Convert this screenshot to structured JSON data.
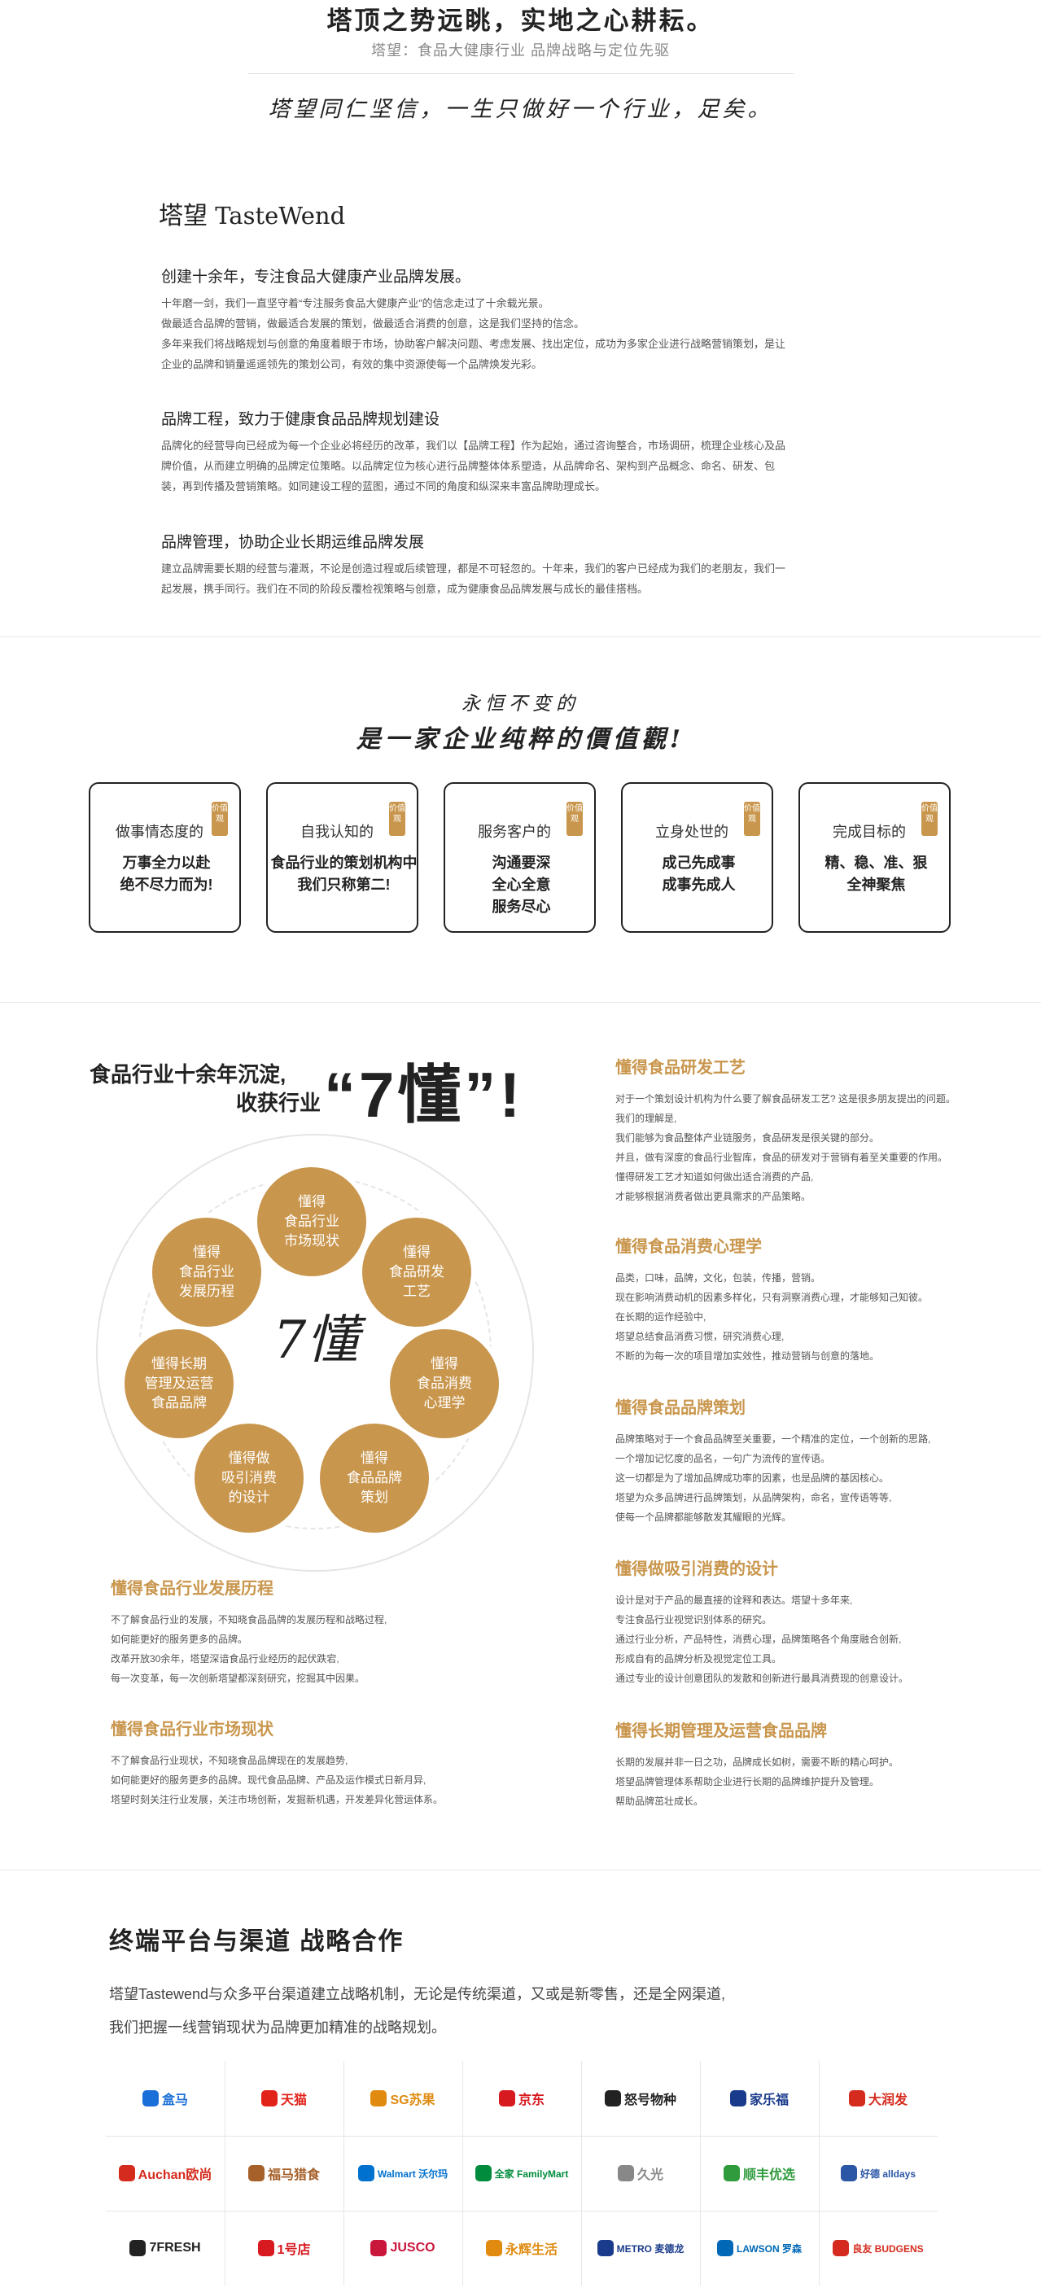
{
  "hero": {
    "title": "塔顶之势远眺，实地之心耕耘。",
    "subtitle": "塔望：食品大健康行业 品牌战略与定位先驱",
    "motto": "塔望同仁坚信，一生只做好一个行业，足矣。"
  },
  "brand": {
    "logo_cn": "塔望",
    "logo_en": "TasteWend"
  },
  "intro": [
    {
      "title": "创建十余年，专注食品大健康产业品牌发展。",
      "lines": [
        "十年磨一剑，我们一直坚守着“专注服务食品大健康产业”的信念走过了十余载光景。",
        "做最适合品牌的营销，做最适合发展的策划，做最适合消费的创意，这是我们坚持的信念。",
        "多年来我们将战略规划与创意的角度着眼于市场，协助客户解决问题、考虑发展、找出定位，成功为多家企业进行战略营销策划，是让",
        "企业的品牌和销量遥遥领先的策划公司，有效的集中资源使每一个品牌焕发光彩。"
      ]
    },
    {
      "title": "品牌工程，致力于健康食品品牌规划建设",
      "lines": [
        "品牌化的经营导向已经成为每一个企业必将经历的改革，我们以【品牌工程】作为起始，通过咨询整合，市场调研，梳理企业核心及品",
        "牌价值，从而建立明确的品牌定位策略。以品牌定位为核心进行品牌整体体系塑造，从品牌命名、架构到产品概念、命名、研发、包",
        "装，再到传播及营销策略。如同建设工程的蓝图，通过不同的角度和纵深来丰富品牌助理成长。"
      ]
    },
    {
      "title": "品牌管理，协助企业长期运维品牌发展",
      "lines": [
        "建立品牌需要长期的经营与灌溉，不论是创造过程或后续管理，都是不可轻忽的。十年来，我们的客户已经成为我们的老朋友，我们一",
        "起发展，携手同行。我们在不同的阶段反覆检视策略与创意，成为健康食品品牌发展与成长的最佳搭档。"
      ]
    }
  ],
  "values": {
    "hand1": "永恒不变的",
    "hand2": "是一家企业纯粹的價值觀!",
    "tag": "价值观",
    "cards": [
      {
        "top": "做事情态度的",
        "bottom": "万事全力以赴\n绝不尽力而为!"
      },
      {
        "top": "自我认知的",
        "bottom": "食品行业的策划机构中\n我们只称第二!"
      },
      {
        "top": "服务客户的",
        "bottom": "沟通要深\n全心全意\n服务尽心"
      },
      {
        "top": "立身处世的",
        "bottom": "成己先成事\n成事先成人"
      },
      {
        "top": "完成目标的",
        "bottom": "精、稳、准、狠\n全神聚焦"
      }
    ]
  },
  "seven": {
    "line1": "食品行业十余年沉淀,",
    "line2": "收获行业",
    "big": "“7懂”!",
    "center": "7懂",
    "accent": "#c9964d",
    "nodes": [
      "懂得\n食品行业\n市场现状",
      "懂得\n食品研发\n工艺",
      "懂得\n食品消费\n心理学",
      "懂得\n食品品牌\n策划",
      "懂得做\n吸引消费\n的设计",
      "懂得长期\n管理及运营\n食品品牌",
      "懂得\n食品行业\n发展历程"
    ],
    "sections": [
      {
        "title": "懂得食品研发工艺",
        "lines": [
          "对于一个策划设计机构为什么要了解食品研发工艺? 这是很多朋友提出的问题。",
          "我们的理解是,",
          "我们能够为食品整体产业链服务，食品研发是很关键的部分。",
          "并且，做有深度的食品行业智库，食品的研发对于营销有着至关重要的作用。",
          "懂得研发工艺才知道如何做出适合消费的产品,",
          "才能够根据消费者做出更具需求的产品策略。"
        ]
      },
      {
        "title": "懂得食品消费心理学",
        "lines": [
          "品类，口味，品牌，文化，包装，传播，营销。",
          "现在影响消费动机的因素多样化，只有洞察消费心理，才能够知己知彼。",
          "在长期的运作经验中,",
          "塔望总结食品消费习惯，研究消费心理,",
          "不断的为每一次的项目增加实效性，推动营销与创意的落地。"
        ]
      },
      {
        "title": "懂得食品品牌策划",
        "lines": [
          "品牌策略对于一个食品品牌至关重要，一个精准的定位，一个创新的思路,",
          "一个增加记忆度的品名，一句广为流传的宣传语。",
          "这一切都是为了增加品牌成功率的因素，也是品牌的基因核心。",
          "塔望为众多品牌进行品牌策划，从品牌架构，命名，宣传语等等,",
          "使每一个品牌都能够散发其耀眼的光辉。"
        ]
      },
      {
        "title": "懂得做吸引消费的设计",
        "lines": [
          "设计是对于产品的最直接的诠释和表达。塔望十多年来,",
          "专注食品行业视觉识别体系的研究。",
          "通过行业分析，产品特性，消费心理，品牌策略各个角度融合创新,",
          "形成自有的品牌分析及视觉定位工具。",
          "通过专业的设计创意团队的发散和创新进行最具消费现的创意设计。"
        ]
      },
      {
        "title": "懂得长期管理及运营食品品牌",
        "lines": [
          "长期的发展并非一日之功，品牌成长如树，需要不断的精心呵护。",
          "塔望品牌管理体系帮助企业进行长期的品牌维护提升及管理。",
          "帮助品牌茁壮成长。"
        ]
      },
      {
        "title": "懂得食品行业发展历程",
        "lines": [
          "不了解食品行业的发展，不知晓食品品牌的发展历程和战略过程,",
          "如何能更好的服务更多的品牌。",
          "改革开放30余年，塔望深谙食品行业经历的起伏跌宕,",
          "每一次变革，每一次创新塔望都深刻研究，挖掘其中因果。"
        ]
      },
      {
        "title": "懂得食品行业市场现状",
        "lines": [
          "不了解食品行业现状，不知晓食品品牌现在的发展趋势,",
          "如何能更好的服务更多的品牌。现代食品品牌、产品及运作模式日新月异,",
          "塔望时刻关注行业发展，关注市场创新，发掘新机遇，开发差异化营运体系。"
        ]
      }
    ]
  },
  "partners": {
    "title": "终端平台与渠道 战略合作",
    "desc1": "塔望Tastewend与众多平台渠道建立战略机制，无论是传统渠道，又或是新零售，还是全网渠道,",
    "desc2": "我们把握一线营销现状为品牌更加精准的战略规划。",
    "logos": [
      {
        "text": "盒马",
        "color": "#1a6fd8",
        "icon": "hippo-icon"
      },
      {
        "text": "天猫",
        "color": "#e2231a",
        "icon": "tmall-icon"
      },
      {
        "text": "SG苏果",
        "color": "#e08b10",
        "icon": "suguo-icon"
      },
      {
        "text": "京东",
        "color": "#d71920",
        "icon": "jd-icon"
      },
      {
        "text": "怒号物种",
        "color": "#222222",
        "icon": "superspecies-icon"
      },
      {
        "text": "家乐福",
        "color": "#1a3b8c",
        "icon": "carrefour-icon"
      },
      {
        "text": "大润发",
        "color": "#d52b1e",
        "icon": "rtmart-icon"
      },
      {
        "text": "Auchan欧尚",
        "color": "#d52b1e",
        "icon": "auchan-icon"
      },
      {
        "text": "福马猎食",
        "color": "#a6602a",
        "icon": "fumark-icon"
      },
      {
        "text": "Walmart 沃尔玛",
        "color": "#0071ce",
        "icon": "walmart-icon"
      },
      {
        "text": "全家 FamilyMart",
        "color": "#008c3c",
        "icon": "familymart-icon"
      },
      {
        "text": "久光",
        "color": "#888888",
        "icon": "sogo-icon"
      },
      {
        "text": "顺丰优选",
        "color": "#2f9b3d",
        "icon": "sfbest-icon"
      },
      {
        "text": "好德 alldays",
        "color": "#2b57a6",
        "icon": "alldays-icon"
      },
      {
        "text": "7FRESH",
        "color": "#222222",
        "icon": "7fresh-icon"
      },
      {
        "text": "1号店",
        "color": "#d71920",
        "icon": "yhd-icon"
      },
      {
        "text": "JUSCO",
        "color": "#c9173b",
        "icon": "jusco-icon"
      },
      {
        "text": "永辉生活",
        "color": "#e08b10",
        "icon": "yonghui-icon"
      },
      {
        "text": "METRO 麦德龙",
        "color": "#1a3b8c",
        "icon": "metro-icon"
      },
      {
        "text": "LAWSON 罗森",
        "color": "#0068b7",
        "icon": "lawson-icon"
      },
      {
        "text": "良友 BUDGENS",
        "color": "#d52b1e",
        "icon": "liangyou-icon"
      }
    ]
  }
}
